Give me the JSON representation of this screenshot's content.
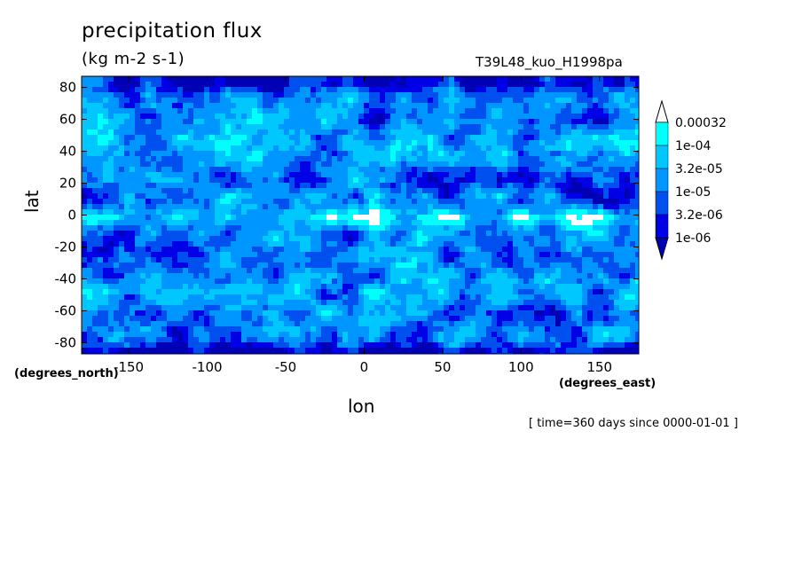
{
  "chart_data": {
    "type": "heatmap",
    "title": "precipitation flux",
    "units": "(kg m-2 s-1)",
    "run_name": "T39L48_kuo_H1998pa",
    "xlabel": "lon",
    "ylabel": "lat",
    "x_units": "(degrees_east)",
    "y_units": "(degrees_north)",
    "xlim": [
      -180,
      175
    ],
    "ylim": [
      -87,
      87
    ],
    "x_ticks": [
      -150,
      -100,
      -50,
      0,
      50,
      100,
      150
    ],
    "y_ticks": [
      80,
      60,
      40,
      20,
      0,
      -20,
      -40,
      -60,
      -80
    ],
    "x_tick_labels": [
      "-150",
      "-100",
      "-50",
      "0",
      "50",
      "100",
      "150"
    ],
    "y_tick_labels": [
      "80",
      "60",
      "40",
      "20",
      "0",
      "-20",
      "-40",
      "-60",
      "-80"
    ],
    "colorbar": {
      "levels": [
        "0.00032",
        "1e-04",
        "3.2e-05",
        "1e-05",
        "3.2e-06",
        "1e-06"
      ],
      "colors": [
        "#ffffff",
        "#00ffff",
        "#00c8ff",
        "#0096ff",
        "#0050f0",
        "#0000e6",
        "#0000b4"
      ]
    },
    "timestamp": "[ time=360 days since 0000-01-01 ]"
  }
}
